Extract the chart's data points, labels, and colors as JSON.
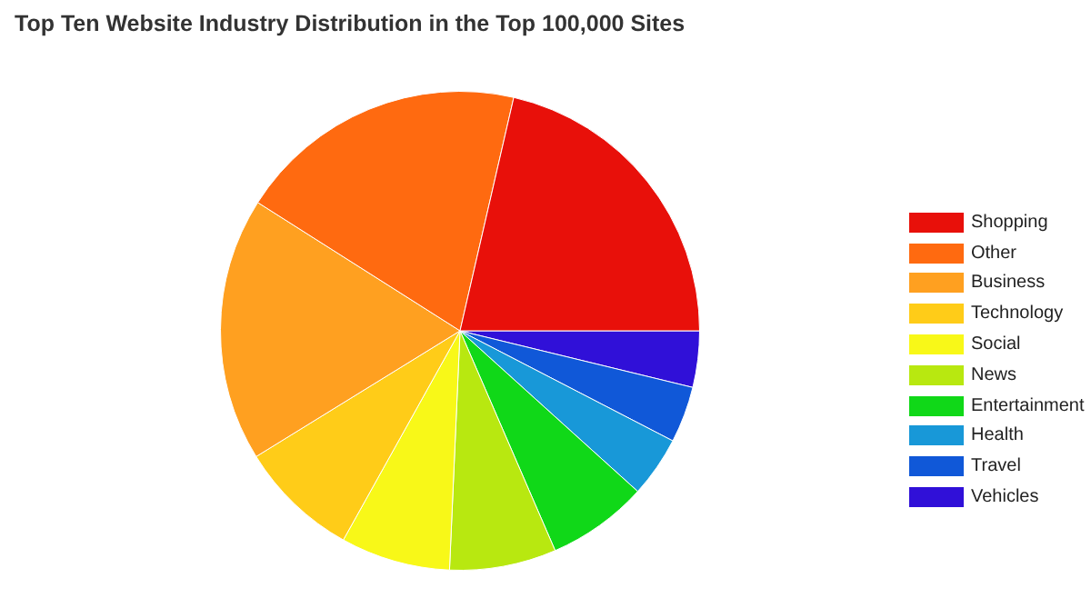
{
  "chart_data": {
    "type": "pie",
    "title": "Top Ten Website Industry Distribution in the Top 100,000 Sites",
    "categories": [
      "Shopping",
      "Other",
      "Business",
      "Technology",
      "Social",
      "News",
      "Entertainment",
      "Health",
      "Travel",
      "Vehicles"
    ],
    "values": [
      21.4,
      19.6,
      17.8,
      8.1,
      7.4,
      7.2,
      6.8,
      4.1,
      3.8,
      3.8
    ],
    "colors": [
      "#e8100a",
      "#ff6a10",
      "#ffa020",
      "#ffcc18",
      "#f8f818",
      "#b8e810",
      "#10d818",
      "#1898d8",
      "#1058d8",
      "#3010d8"
    ],
    "legend": "right"
  }
}
